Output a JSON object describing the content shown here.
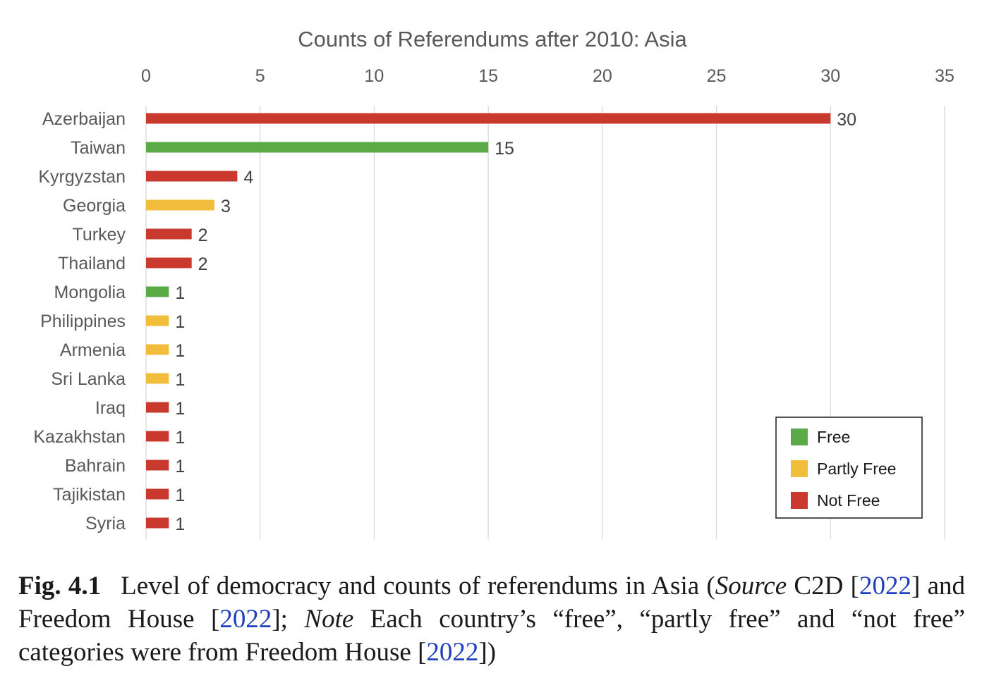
{
  "chart_data": {
    "type": "bar",
    "orientation": "horizontal",
    "title": "Counts of Referendums after 2010: Asia",
    "xlim": [
      0,
      35
    ],
    "x_ticks": [
      0,
      5,
      10,
      15,
      20,
      25,
      30,
      35
    ],
    "x_axis_position": "top",
    "grid": true,
    "legend_placement": "bottom-right",
    "legend": [
      {
        "label": "Free",
        "color": "#5aab45"
      },
      {
        "label": "Partly Free",
        "color": "#f2bd3a"
      },
      {
        "label": "Not Free",
        "color": "#c9392d"
      }
    ],
    "categories": [
      "Azerbaijan",
      "Taiwan",
      "Kyrgyzstan",
      "Georgia",
      "Turkey",
      "Thailand",
      "Mongolia",
      "Philippines",
      "Armenia",
      "Sri Lanka",
      "Iraq",
      "Kazakhstan",
      "Bahrain",
      "Tajikistan",
      "Syria"
    ],
    "values": [
      30,
      15,
      4,
      3,
      2,
      2,
      1,
      1,
      1,
      1,
      1,
      1,
      1,
      1,
      1
    ],
    "status": [
      "Not Free",
      "Free",
      "Not Free",
      "Partly Free",
      "Not Free",
      "Not Free",
      "Free",
      "Partly Free",
      "Partly Free",
      "Partly Free",
      "Not Free",
      "Not Free",
      "Not Free",
      "Not Free",
      "Not Free"
    ]
  },
  "caption": {
    "label": "Fig. 4.1",
    "t1": "Level of democracy and counts of referendums in Asia (",
    "source_word": "Source",
    "t2": " C2D [",
    "ref1": "2022",
    "t3": "] and Freedom House [",
    "ref2": "2022",
    "t4": "]; ",
    "note_word": "Note",
    "t5": " Each country’s “free”, “partly free” and “not free” categories were from Freedom House [",
    "ref3": "2022",
    "t6": "])"
  }
}
